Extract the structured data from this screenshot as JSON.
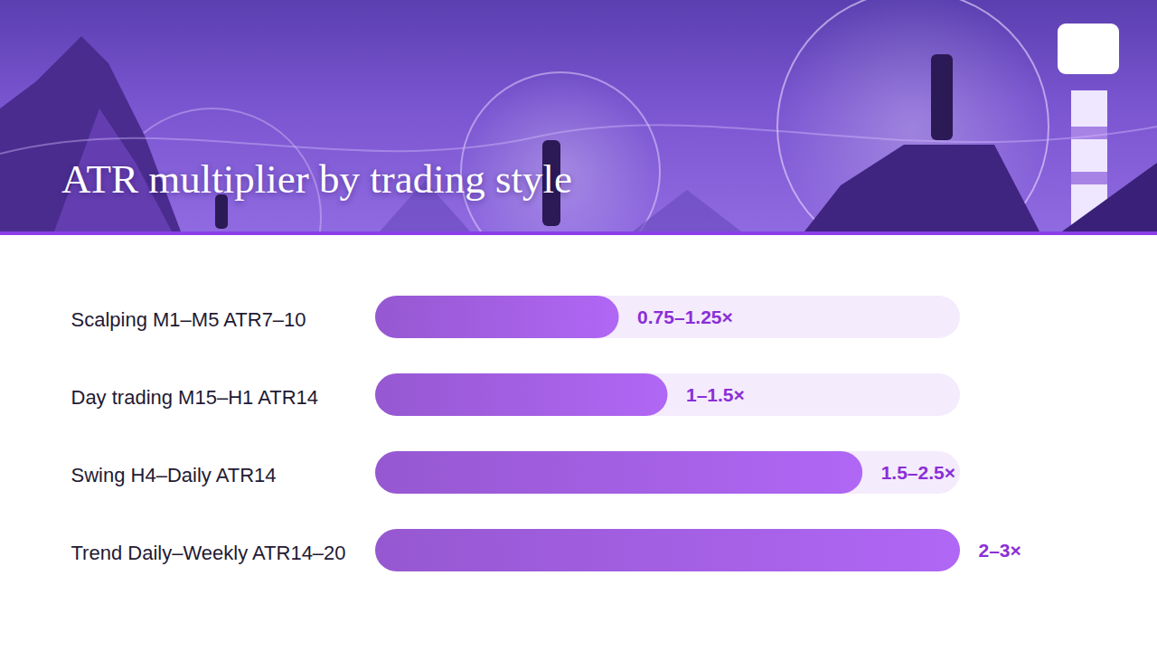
{
  "chart_data": {
    "type": "bar",
    "orientation": "horizontal",
    "title": "ATR multiplier by trading style",
    "categories": [
      "Scalping M1–M5 ATR7–10",
      "Day trading M15–H1 ATR14",
      "Swing H4–Daily ATR14",
      "Trend Daily–Weekly ATR14–20"
    ],
    "values": [
      1.25,
      1.5,
      2.5,
      3
    ],
    "value_labels": [
      "0.75–1.25×",
      "1–1.5×",
      "1.5–2.5×",
      "2–3×"
    ],
    "data_labels": true,
    "xlim": [
      0,
      3
    ],
    "tick_labels": false,
    "grid": false,
    "color": "#b067f5"
  }
}
